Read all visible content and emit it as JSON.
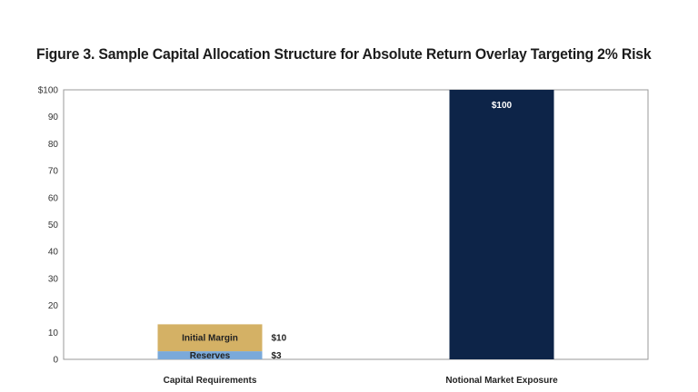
{
  "chart_data": {
    "type": "bar",
    "stacked": true,
    "title": "Figure 3. Sample Capital Allocation Structure for Absolute Return Overlay Targeting 2% Risk",
    "xlabel": "",
    "ylabel": "",
    "ylim": [
      0,
      100
    ],
    "y_ticks": [
      "0",
      "10",
      "20",
      "30",
      "40",
      "50",
      "60",
      "70",
      "80",
      "90",
      "$100"
    ],
    "grid": false,
    "categories": [
      "Capital Requirements",
      "Notional Market Exposure"
    ],
    "bars": [
      {
        "category": "Capital Requirements",
        "segments": [
          {
            "name": "Reserves",
            "value": 3,
            "color": "#7aa9da",
            "value_label": "$3"
          },
          {
            "name": "Initial Margin",
            "value": 10,
            "color": "#d4b165",
            "value_label": "$10"
          }
        ]
      },
      {
        "category": "Notional Market Exposure",
        "segments": [
          {
            "name": "",
            "value": 100,
            "color": "#0d2448",
            "value_label": "$100"
          }
        ]
      }
    ],
    "colors": {
      "axis": "#9a9a9a",
      "reserves": "#7aa9da",
      "initial_margin": "#d4b165",
      "notional": "#0d2448"
    }
  }
}
